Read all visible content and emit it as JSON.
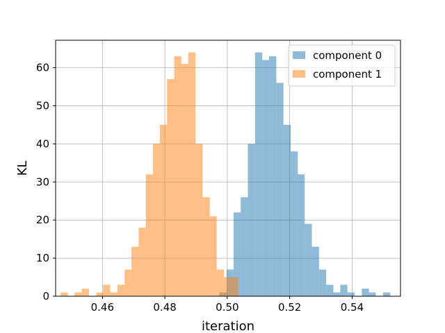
{
  "chart_data": {
    "type": "histogram",
    "xlabel": "iteration",
    "ylabel": "KL",
    "xlim": [
      0.445,
      0.5555
    ],
    "ylim": [
      0,
      67.2
    ],
    "xticks": [
      0.46,
      0.48,
      0.5,
      0.52,
      0.54
    ],
    "xtick_labels": [
      "0.46",
      "0.48",
      "0.50",
      "0.52",
      "0.54"
    ],
    "yticks": [
      0,
      10,
      20,
      30,
      40,
      50,
      60
    ],
    "ytick_labels": [
      "0",
      "10",
      "20",
      "30",
      "40",
      "50",
      "60"
    ],
    "grid": true,
    "legend": "top-right",
    "series": [
      {
        "name": "component 0",
        "color": "#1f77b4",
        "bins": [
          [
            0.4975,
            0.4998,
            1
          ],
          [
            0.4998,
            0.502,
            7
          ],
          [
            0.502,
            0.5043,
            22
          ],
          [
            0.5043,
            0.5066,
            26
          ],
          [
            0.5066,
            0.5089,
            40
          ],
          [
            0.5089,
            0.5112,
            64
          ],
          [
            0.5112,
            0.5134,
            62
          ],
          [
            0.5134,
            0.5157,
            63
          ],
          [
            0.5157,
            0.518,
            56
          ],
          [
            0.518,
            0.5203,
            45
          ],
          [
            0.5203,
            0.5226,
            38
          ],
          [
            0.5226,
            0.5248,
            32
          ],
          [
            0.5248,
            0.5271,
            19
          ],
          [
            0.5271,
            0.5294,
            13
          ],
          [
            0.5294,
            0.5317,
            7
          ],
          [
            0.5317,
            0.534,
            3
          ],
          [
            0.534,
            0.5362,
            1
          ],
          [
            0.5362,
            0.5385,
            3
          ],
          [
            0.5385,
            0.5408,
            1
          ],
          [
            0.5431,
            0.5454,
            2
          ],
          [
            0.5454,
            0.5476,
            1
          ],
          [
            0.5499,
            0.5522,
            1
          ]
        ]
      },
      {
        "name": "component 1",
        "color": "#ff7f0e",
        "bins": [
          [
            0.4466,
            0.4489,
            1
          ],
          [
            0.4511,
            0.4534,
            1
          ],
          [
            0.4534,
            0.4557,
            2
          ],
          [
            0.458,
            0.4602,
            1
          ],
          [
            0.4602,
            0.4625,
            3
          ],
          [
            0.4625,
            0.4648,
            1
          ],
          [
            0.4648,
            0.4671,
            3
          ],
          [
            0.4671,
            0.4693,
            7
          ],
          [
            0.4693,
            0.4716,
            13
          ],
          [
            0.4716,
            0.4739,
            18
          ],
          [
            0.4739,
            0.4762,
            32
          ],
          [
            0.4762,
            0.4784,
            40
          ],
          [
            0.4784,
            0.4807,
            45
          ],
          [
            0.4807,
            0.483,
            57
          ],
          [
            0.483,
            0.4853,
            63
          ],
          [
            0.4853,
            0.4875,
            61
          ],
          [
            0.4875,
            0.4898,
            64
          ],
          [
            0.4898,
            0.4921,
            40
          ],
          [
            0.4921,
            0.4944,
            26
          ],
          [
            0.4944,
            0.4966,
            21
          ],
          [
            0.4966,
            0.4989,
            7
          ],
          [
            0.4989,
            0.5012,
            5
          ],
          [
            0.5012,
            0.5035,
            5
          ]
        ]
      }
    ]
  }
}
